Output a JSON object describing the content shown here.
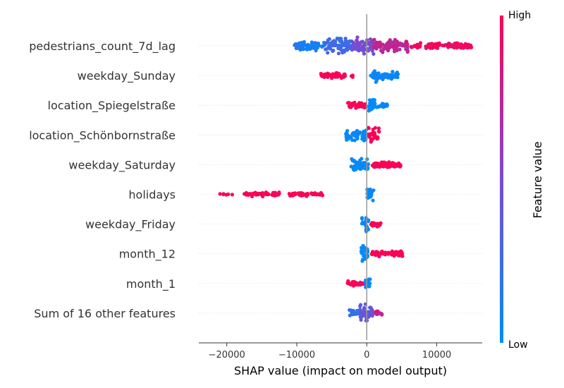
{
  "chart_data": {
    "type": "scatter",
    "subtype": "shap-beeswarm",
    "title": "",
    "xlabel": "SHAP value (impact on model output)",
    "ylabel": "",
    "xlim": [
      -24000,
      16500
    ],
    "xticks": [
      -20000,
      -10000,
      0,
      10000
    ],
    "xtick_labels": [
      "−20000",
      "−10000",
      "0",
      "10000"
    ],
    "grid": false,
    "colorbar": {
      "label": "Feature value",
      "high": "High",
      "low": "Low",
      "low_color": "#008bfb",
      "mid_color": "#7c4bd0",
      "high_color": "#ff0052"
    },
    "features": [
      {
        "name": "pedestrians_count_7d_lag",
        "min": -10500,
        "max": 15000,
        "segments": [
          {
            "from": -10500,
            "to": -6000,
            "feature_value": 0.1,
            "density": 1.0,
            "spread": 0.6
          },
          {
            "from": -6000,
            "to": -2000,
            "feature_value": 0.25,
            "density": 1.2,
            "spread": 0.9
          },
          {
            "from": -2000,
            "to": 1000,
            "feature_value": 0.5,
            "density": 1.4,
            "spread": 1.0
          },
          {
            "from": 1000,
            "to": 6000,
            "feature_value": 0.75,
            "density": 1.1,
            "spread": 0.8
          },
          {
            "from": 6000,
            "to": 15000,
            "feature_value": 0.95,
            "density": 0.7,
            "spread": 0.35
          }
        ]
      },
      {
        "name": "weekday_Sunday",
        "min": -6600,
        "max": 4500,
        "segments": [
          {
            "from": -6600,
            "to": -3000,
            "feature_value": 1.0,
            "density": 0.9,
            "spread": 0.35
          },
          {
            "from": -2300,
            "to": -1800,
            "feature_value": 1.0,
            "density": 0.2,
            "spread": 0.2
          },
          {
            "from": 500,
            "to": 4500,
            "feature_value": 0.0,
            "density": 1.2,
            "spread": 0.45
          },
          {
            "from": 1100,
            "to": 1500,
            "feature_value": 0.0,
            "density": 1.0,
            "spread": 1.0
          }
        ]
      },
      {
        "name": "location_Spiegelstraße",
        "min": -2700,
        "max": 3000,
        "segments": [
          {
            "from": -2700,
            "to": -200,
            "feature_value": 1.0,
            "density": 0.9,
            "spread": 0.35
          },
          {
            "from": 200,
            "to": 3000,
            "feature_value": 0.0,
            "density": 0.9,
            "spread": 0.3
          },
          {
            "from": 300,
            "to": 1200,
            "feature_value": 0.0,
            "density": 1.0,
            "spread": 0.9
          }
        ]
      },
      {
        "name": "location_Schönbornstraße",
        "min": -3000,
        "max": 1800,
        "segments": [
          {
            "from": -3000,
            "to": 0,
            "feature_value": 0.0,
            "density": 1.3,
            "spread": 0.75
          },
          {
            "from": 200,
            "to": 1800,
            "feature_value": 1.0,
            "density": 1.3,
            "spread": 1.0
          }
        ]
      },
      {
        "name": "weekday_Saturday",
        "min": -2300,
        "max": 5000,
        "segments": [
          {
            "from": -2300,
            "to": 300,
            "feature_value": 0.0,
            "density": 1.3,
            "spread": 0.75
          },
          {
            "from": 800,
            "to": 5000,
            "feature_value": 1.0,
            "density": 1.1,
            "spread": 0.35
          }
        ]
      },
      {
        "name": "holidays",
        "min": -22500,
        "max": 1000,
        "segments": [
          {
            "from": -22500,
            "to": -19000,
            "feature_value": 1.0,
            "density": 0.1,
            "spread": 0.1
          },
          {
            "from": -17500,
            "to": -12500,
            "feature_value": 1.0,
            "density": 0.6,
            "spread": 0.25
          },
          {
            "from": -11200,
            "to": -6200,
            "feature_value": 1.0,
            "density": 0.6,
            "spread": 0.25
          },
          {
            "from": 0,
            "to": 1000,
            "feature_value": 0.0,
            "density": 1.4,
            "spread": 1.0
          }
        ]
      },
      {
        "name": "weekday_Friday",
        "min": -700,
        "max": 2100,
        "segments": [
          {
            "from": -700,
            "to": 300,
            "feature_value": 0.0,
            "density": 1.4,
            "spread": 1.0
          },
          {
            "from": 600,
            "to": 2100,
            "feature_value": 1.0,
            "density": 0.9,
            "spread": 0.35
          }
        ]
      },
      {
        "name": "month_12",
        "min": -800,
        "max": 5100,
        "segments": [
          {
            "from": -800,
            "to": 300,
            "feature_value": 0.0,
            "density": 1.4,
            "spread": 1.0
          },
          {
            "from": 700,
            "to": 5100,
            "feature_value": 1.0,
            "density": 1.0,
            "spread": 0.35
          }
        ]
      },
      {
        "name": "month_1",
        "min": -2900,
        "max": 500,
        "segments": [
          {
            "from": -2900,
            "to": -200,
            "feature_value": 1.0,
            "density": 0.8,
            "spread": 0.3
          },
          {
            "from": -200,
            "to": 500,
            "feature_value": 0.0,
            "density": 1.3,
            "spread": 1.0
          }
        ]
      },
      {
        "name": "Sum of 16 other features",
        "min": -2500,
        "max": 2200,
        "segments": [
          {
            "from": -2500,
            "to": -1000,
            "feature_value": 0.2,
            "density": 0.7,
            "spread": 0.35
          },
          {
            "from": -1000,
            "to": 1000,
            "feature_value": 0.4,
            "density": 1.5,
            "spread": 1.0
          },
          {
            "from": 1000,
            "to": 2200,
            "feature_value": 0.8,
            "density": 0.7,
            "spread": 0.35
          }
        ]
      }
    ]
  }
}
